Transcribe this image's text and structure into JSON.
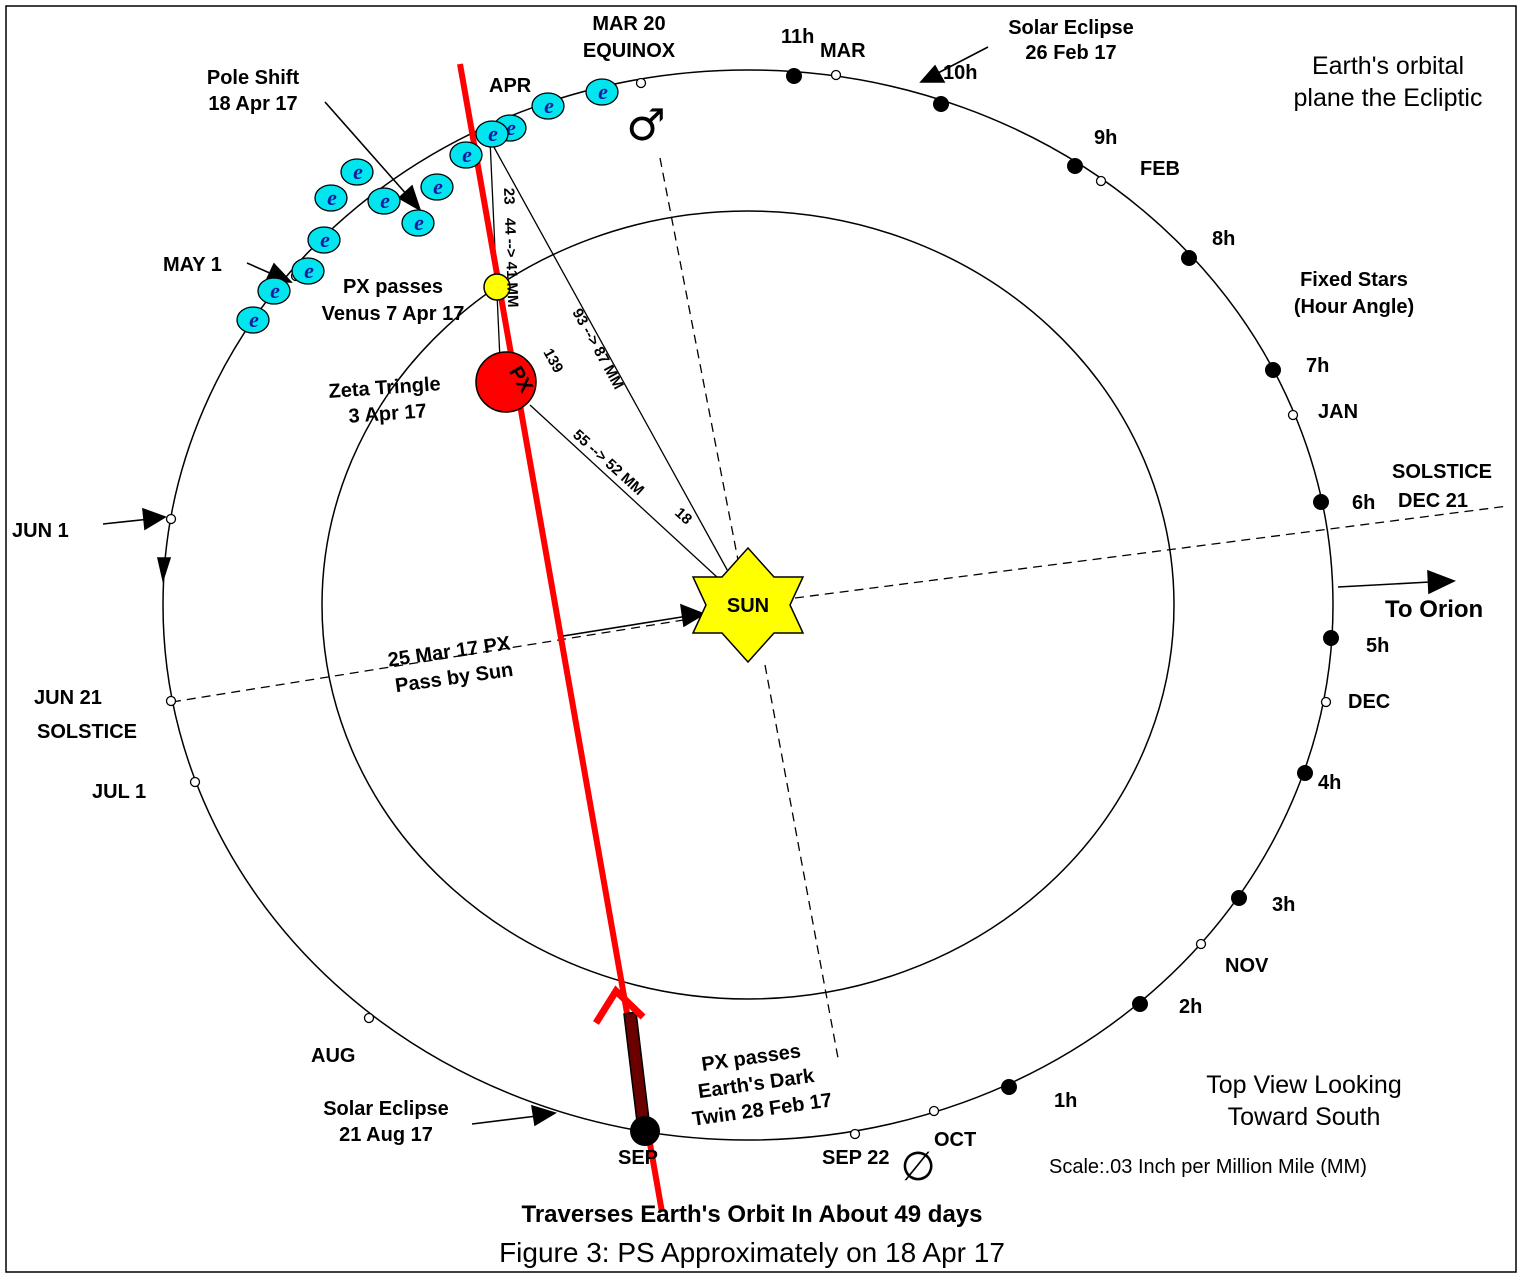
{
  "caption": "Figure 3: PS Approximately on 18 Apr 17",
  "footer_note": "Traverses Earth's Orbit In About 49 days",
  "ecliptic_label": [
    "Earth's orbital",
    "plane the Ecliptic"
  ],
  "view_label": [
    "Top View Looking",
    "Toward South"
  ],
  "scale_label": "Scale:.03 Inch per Million Mile (MM)",
  "fixed_stars_label": [
    "Fixed Stars",
    "(Hour Angle)"
  ],
  "orion_label": "To Orion",
  "sun_label": "SUN",
  "px_label": "PX",
  "mars_symbol": "♂",
  "dark_twin_symbol": "∅",
  "earth_symbol": "e",
  "months": {
    "mar": "MAR",
    "apr": "APR",
    "feb": "FEB",
    "jan": "JAN",
    "dec": "DEC",
    "nov": "NOV",
    "oct": "OCT",
    "sep": "SEP",
    "aug": "AUG"
  },
  "hours": [
    "11h",
    "10h",
    "9h",
    "8h",
    "7h",
    "6h",
    "5h",
    "4h",
    "3h",
    "2h",
    "1h"
  ],
  "events": {
    "equinox": [
      "MAR 20",
      "EQUINOX"
    ],
    "solar_eclipse_feb": [
      "Solar Eclipse",
      "26 Feb 17"
    ],
    "pole_shift": [
      "Pole Shift",
      "18 Apr 17"
    ],
    "may1": "MAY 1",
    "px_venus": [
      "PX passes",
      "Venus 7 Apr 17"
    ],
    "zeta": [
      "Zeta Tringle",
      "3 Apr 17"
    ],
    "jun1": "JUN 1",
    "jun21": [
      "JUN 21",
      "SOLSTICE"
    ],
    "jul1": "JUL 1",
    "solstice_dec": [
      "SOLSTICE",
      "DEC 21"
    ],
    "px_sun": [
      "25 Mar 17  PX",
      "Pass by Sun"
    ],
    "px_dark_twin": [
      "PX passes",
      "Earth's Dark",
      "Twin 28 Feb 17"
    ],
    "solar_eclipse_aug": [
      "Solar Eclipse",
      "21 Aug 17"
    ],
    "sep22": "SEP 22"
  },
  "distances": {
    "d_earth_px": "44 --> 41 MM",
    "d_23": "23",
    "d_earth_sun": "93 --> 87 MM",
    "d_px_sun": "55 --> 52 MM",
    "d_139": "139",
    "d_18": "18"
  },
  "colors": {
    "trajectory": "#ff0000",
    "px": "#ff0000",
    "sun": "#ffff00",
    "venus": "#ffff00",
    "earth": "#00e5ee"
  }
}
